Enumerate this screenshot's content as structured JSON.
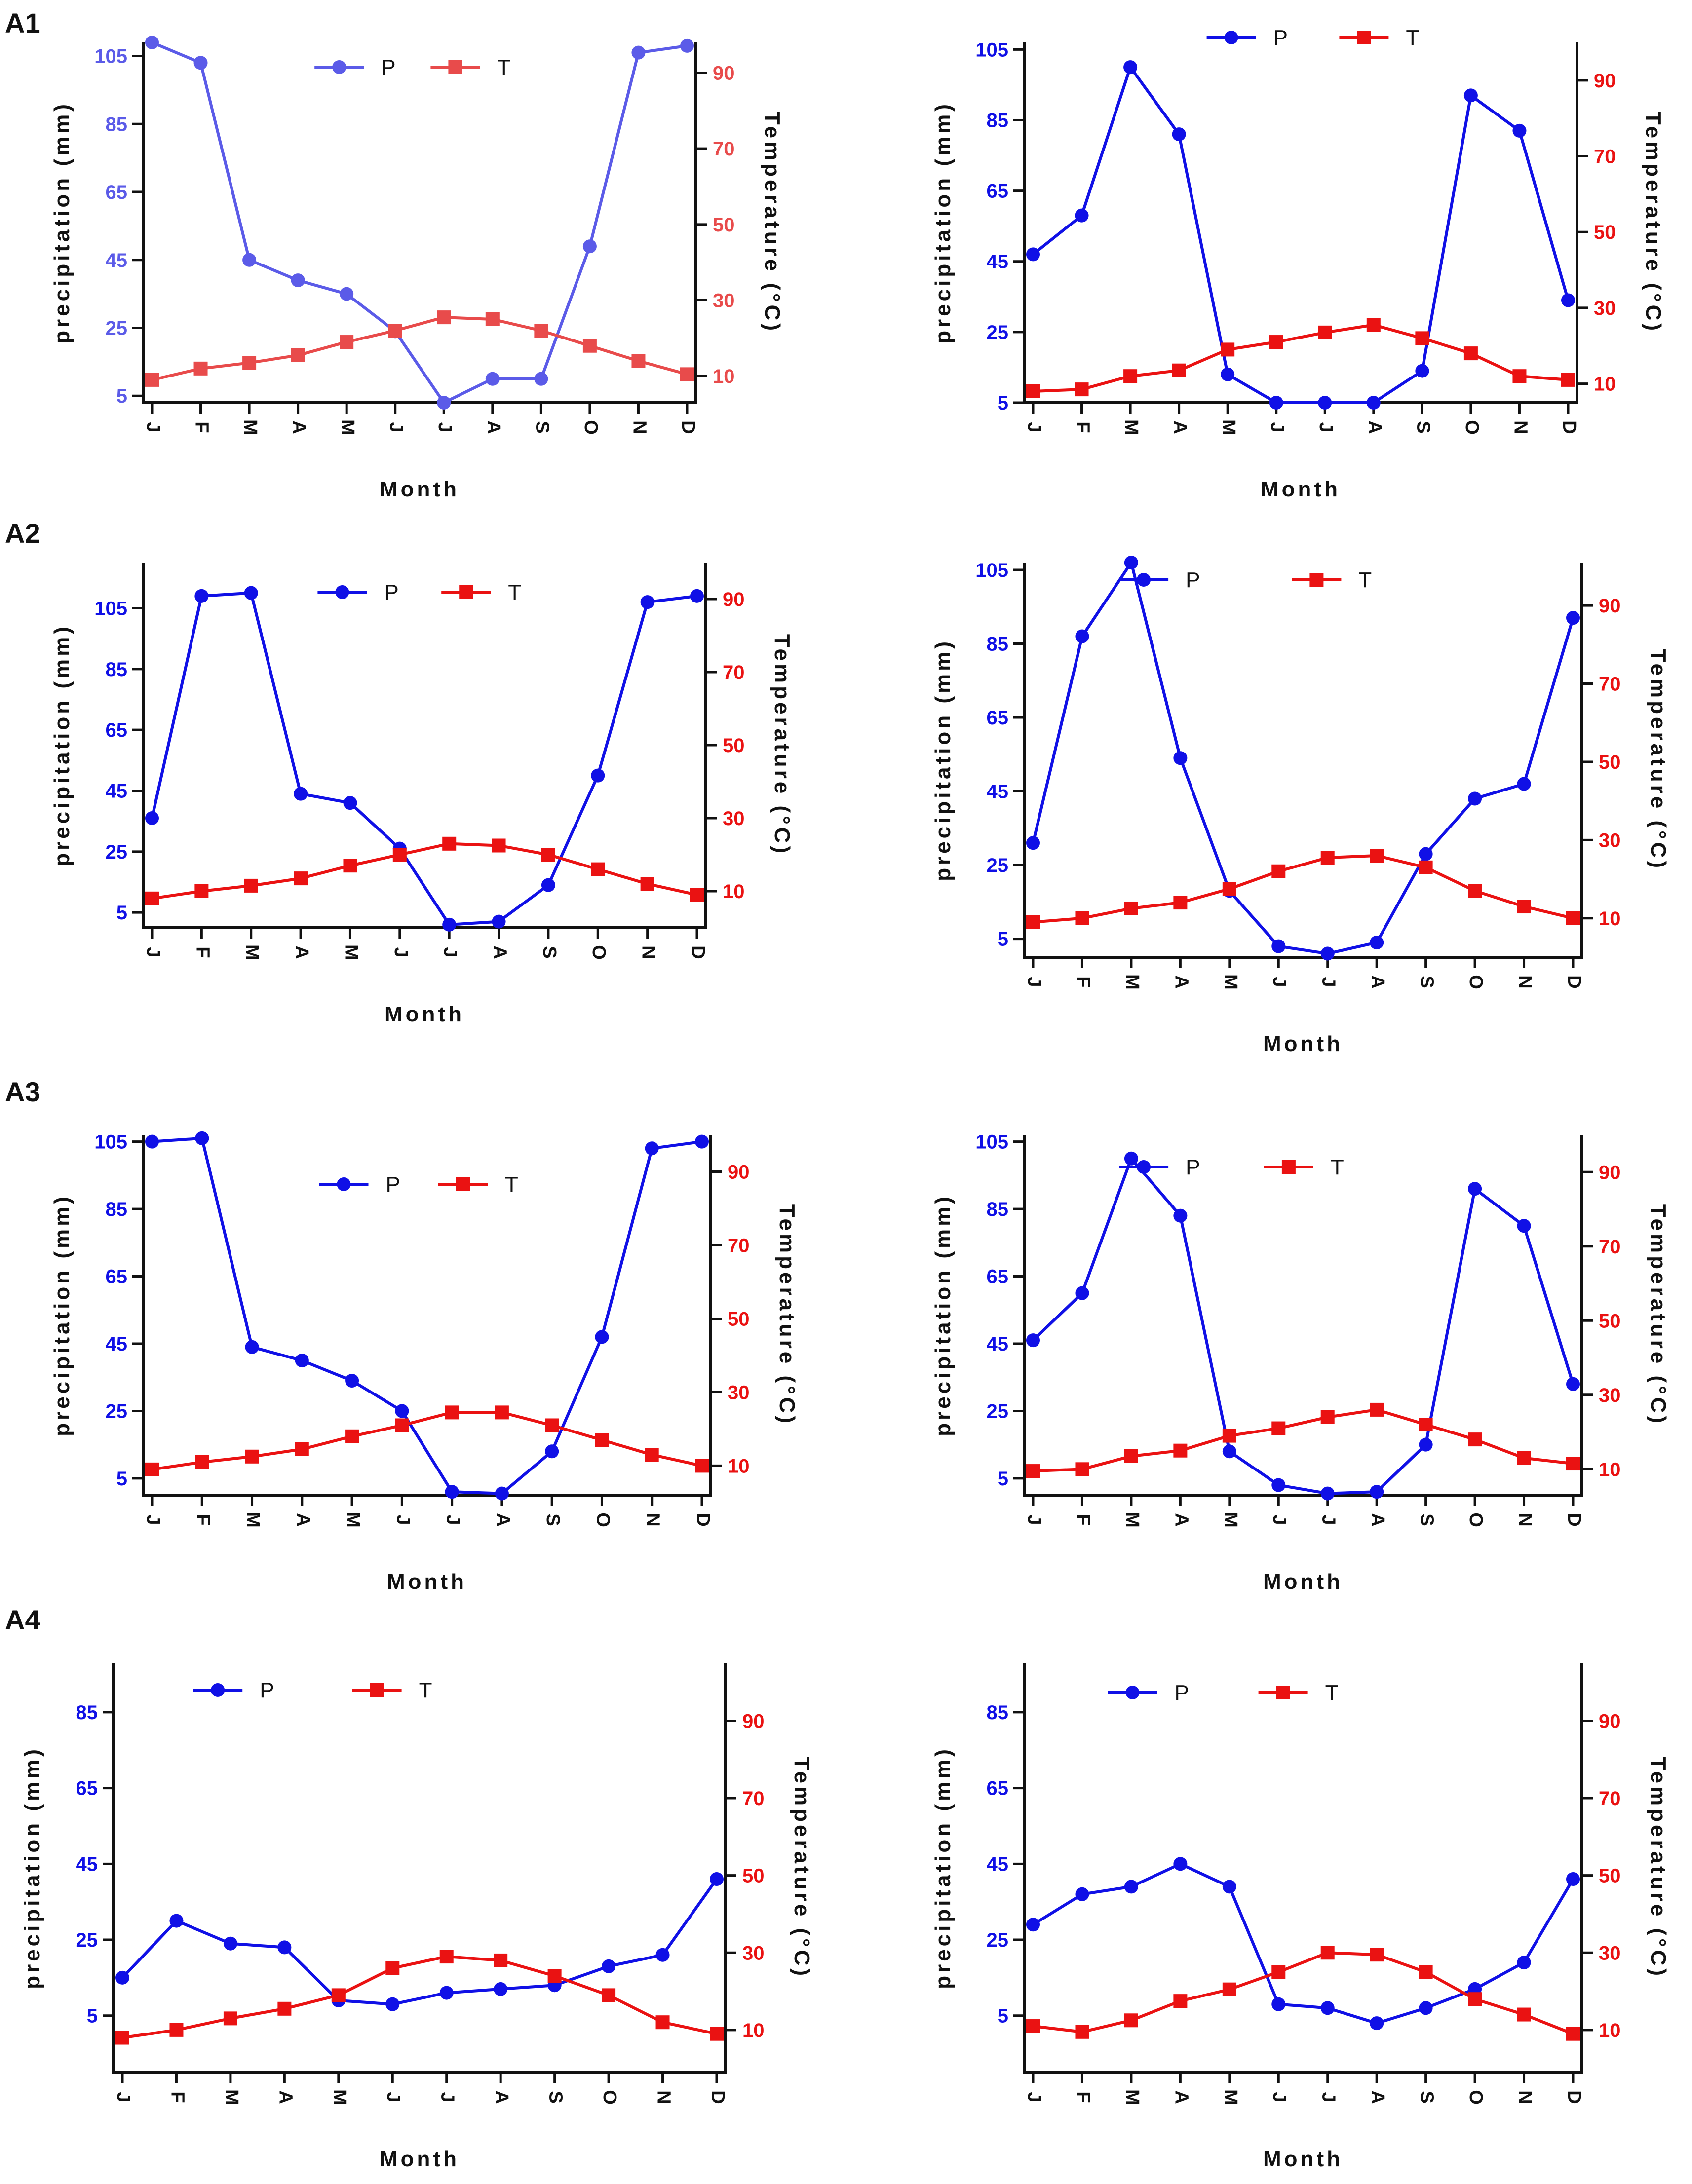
{
  "figure": {
    "months": [
      "J",
      "F",
      "M",
      "A",
      "M",
      "J",
      "J",
      "A",
      "S",
      "O",
      "N",
      "D"
    ],
    "colors": {
      "axis": "#111111",
      "p_light": "#5b5be8",
      "p_dark": "#1010e6",
      "t_light": "#e84b4b",
      "t_dark": "#ea1212"
    },
    "rows": [
      {
        "label": "A1"
      },
      {
        "label": "A2"
      },
      {
        "label": "A3"
      },
      {
        "label": "A4"
      }
    ]
  },
  "chart_data": [
    {
      "id": "A1-left",
      "type": "line",
      "row": "A1",
      "categories": [
        "J",
        "F",
        "M",
        "A",
        "M",
        "J",
        "J",
        "A",
        "S",
        "O",
        "N",
        "D"
      ],
      "xlabel": "Month",
      "ylabel": "precipitation (mm)",
      "y2label": "Temperature (°C)",
      "ylim": [
        3,
        109
      ],
      "yticks": [
        5,
        25,
        45,
        65,
        85,
        105
      ],
      "y2lim": [
        3,
        98
      ],
      "y2ticks": [
        10,
        30,
        50,
        70,
        90
      ],
      "legend": [
        "P",
        "T"
      ],
      "series": [
        {
          "name": "P",
          "axis": "left",
          "marker": "circle",
          "values": [
            109,
            103,
            45,
            39,
            35,
            24,
            3,
            10,
            10,
            49,
            106,
            108
          ]
        },
        {
          "name": "T",
          "axis": "right",
          "marker": "square",
          "values": [
            9,
            12,
            13.5,
            15.5,
            19,
            22,
            25.5,
            25,
            22,
            18,
            14,
            10.5
          ]
        }
      ]
    },
    {
      "id": "A1-right",
      "type": "line",
      "row": "A1",
      "categories": [
        "J",
        "F",
        "M",
        "A",
        "M",
        "J",
        "J",
        "A",
        "S",
        "O",
        "N",
        "D"
      ],
      "xlabel": "Month",
      "ylabel": "precipitation (mm)",
      "y2label": "Temperature (°C)",
      "ylim": [
        5,
        107
      ],
      "yticks": [
        5,
        25,
        45,
        65,
        85,
        105
      ],
      "y2lim": [
        5,
        100
      ],
      "y2ticks": [
        10,
        30,
        50,
        70,
        90
      ],
      "legend": [
        "P",
        "T"
      ],
      "series": [
        {
          "name": "P",
          "axis": "left",
          "marker": "circle",
          "values": [
            47,
            58,
            100,
            81,
            13,
            5,
            5,
            5,
            14,
            92,
            82,
            34
          ]
        },
        {
          "name": "T",
          "axis": "right",
          "marker": "square",
          "values": [
            8,
            8.5,
            12,
            13.5,
            19,
            21,
            23.5,
            25.5,
            22,
            18,
            12,
            11
          ]
        }
      ]
    },
    {
      "id": "A2-left",
      "type": "line",
      "row": "A2",
      "categories": [
        "J",
        "F",
        "M",
        "A",
        "M",
        "J",
        "J",
        "A",
        "S",
        "O",
        "N",
        "D"
      ],
      "xlabel": "Month",
      "ylabel": "precipitation (mm)",
      "y2label": "Temperature (°C)",
      "ylim": [
        0,
        120
      ],
      "yticks": [
        5,
        25,
        45,
        65,
        85,
        105
      ],
      "y2lim": [
        0,
        100
      ],
      "y2ticks": [
        10,
        30,
        50,
        70,
        90
      ],
      "legend": [
        "P",
        "T"
      ],
      "series": [
        {
          "name": "P",
          "axis": "left",
          "marker": "circle",
          "values": [
            36,
            109,
            110,
            44,
            41,
            26,
            1,
            2,
            14,
            50,
            107,
            109
          ]
        },
        {
          "name": "T",
          "axis": "right",
          "marker": "square",
          "values": [
            8,
            10,
            11.5,
            13.5,
            17,
            20,
            23,
            22.5,
            20,
            16,
            12,
            9
          ]
        }
      ]
    },
    {
      "id": "A2-right",
      "type": "line",
      "row": "A2",
      "categories": [
        "J",
        "F",
        "M",
        "A",
        "M",
        "J",
        "J",
        "A",
        "S",
        "O",
        "N",
        "D"
      ],
      "xlabel": "Month",
      "ylabel": "precipitation (mm)",
      "y2label": "Temperature (°C)",
      "ylim": [
        0,
        107
      ],
      "yticks": [
        5,
        25,
        45,
        65,
        85,
        105
      ],
      "y2lim": [
        0,
        101
      ],
      "y2ticks": [
        10,
        30,
        50,
        70,
        90
      ],
      "legend": [
        "P",
        "T"
      ],
      "series": [
        {
          "name": "P",
          "axis": "left",
          "marker": "circle",
          "values": [
            31,
            87,
            107,
            54,
            18,
            3,
            1,
            4,
            28,
            43,
            47,
            92
          ]
        },
        {
          "name": "T",
          "axis": "right",
          "marker": "square",
          "values": [
            9,
            10,
            12.5,
            14,
            17.5,
            22,
            25.5,
            26,
            23,
            17,
            13,
            10
          ]
        }
      ]
    },
    {
      "id": "A3-left",
      "type": "line",
      "row": "A3",
      "categories": [
        "J",
        "F",
        "M",
        "A",
        "M",
        "J",
        "J",
        "A",
        "S",
        "O",
        "N",
        "D"
      ],
      "xlabel": "Month",
      "ylabel": "precipitation (mm)",
      "y2label": "Temperature (°C)",
      "ylim": [
        0,
        107
      ],
      "yticks": [
        5,
        25,
        45,
        65,
        85,
        105
      ],
      "y2lim": [
        2,
        100
      ],
      "y2ticks": [
        10,
        30,
        50,
        70,
        90
      ],
      "legend": [
        "P",
        "T"
      ],
      "series": [
        {
          "name": "P",
          "axis": "left",
          "marker": "circle",
          "values": [
            105,
            106,
            44,
            40,
            34,
            25,
            1,
            0.5,
            13,
            47,
            103,
            105
          ]
        },
        {
          "name": "T",
          "axis": "right",
          "marker": "square",
          "values": [
            9,
            11,
            12.5,
            14.5,
            18,
            21,
            24.5,
            24.5,
            21,
            17,
            13,
            10
          ]
        }
      ]
    },
    {
      "id": "A3-right",
      "type": "line",
      "row": "A3",
      "categories": [
        "J",
        "F",
        "M",
        "A",
        "M",
        "J",
        "J",
        "A",
        "S",
        "O",
        "N",
        "D"
      ],
      "xlabel": "Month",
      "ylabel": "precipitation (mm)",
      "y2label": "Temperature (°C)",
      "ylim": [
        0,
        107
      ],
      "yticks": [
        5,
        25,
        45,
        65,
        85,
        105
      ],
      "y2lim": [
        3,
        100
      ],
      "y2ticks": [
        10,
        30,
        50,
        70,
        90
      ],
      "legend": [
        "P",
        "T"
      ],
      "series": [
        {
          "name": "P",
          "axis": "left",
          "marker": "circle",
          "values": [
            46,
            60,
            100,
            83,
            13,
            3,
            0.5,
            1,
            15,
            91,
            80,
            33
          ]
        },
        {
          "name": "T",
          "axis": "right",
          "marker": "square",
          "values": [
            9.5,
            10,
            13.5,
            15,
            19,
            21,
            24,
            26,
            22,
            18,
            13,
            11.5
          ]
        }
      ]
    },
    {
      "id": "A4-left",
      "type": "line",
      "row": "A4",
      "categories": [
        "J",
        "F",
        "M",
        "A",
        "M",
        "J",
        "J",
        "A",
        "S",
        "O",
        "N",
        "D"
      ],
      "xlabel": "Month",
      "ylabel": "precipitation (mm)",
      "y2label": "Temperature (°C)",
      "ylim": [
        -10,
        98
      ],
      "yticks": [
        5,
        25,
        45,
        65,
        85
      ],
      "y2lim": [
        -1,
        105
      ],
      "y2ticks": [
        10,
        30,
        50,
        70,
        90
      ],
      "legend": [
        "P",
        "T"
      ],
      "series": [
        {
          "name": "P",
          "axis": "left",
          "marker": "circle",
          "values": [
            15,
            30,
            24,
            23,
            9,
            8,
            11,
            12,
            13,
            18,
            21,
            41
          ]
        },
        {
          "name": "T",
          "axis": "right",
          "marker": "square",
          "values": [
            8,
            10,
            13,
            15.5,
            19,
            26,
            29,
            28,
            24,
            19,
            12,
            9
          ]
        }
      ]
    },
    {
      "id": "A4-right",
      "type": "line",
      "row": "A4",
      "categories": [
        "J",
        "F",
        "M",
        "A",
        "M",
        "J",
        "J",
        "A",
        "S",
        "O",
        "N",
        "D"
      ],
      "xlabel": "Month",
      "ylabel": "precipitation (mm)",
      "y2label": "Temperature (°C)",
      "ylim": [
        -10,
        98
      ],
      "yticks": [
        5,
        25,
        45,
        65,
        85
      ],
      "y2lim": [
        -1,
        105
      ],
      "y2ticks": [
        10,
        30,
        50,
        70,
        90
      ],
      "legend": [
        "P",
        "T"
      ],
      "series": [
        {
          "name": "P",
          "axis": "left",
          "marker": "circle",
          "values": [
            29,
            37,
            39,
            45,
            39,
            8,
            7,
            3,
            7,
            12,
            19,
            41
          ]
        },
        {
          "name": "T",
          "axis": "right",
          "marker": "square",
          "values": [
            11,
            9.5,
            12.5,
            17.5,
            20.5,
            25,
            30,
            29.5,
            25,
            18,
            14,
            9
          ]
        }
      ]
    }
  ]
}
